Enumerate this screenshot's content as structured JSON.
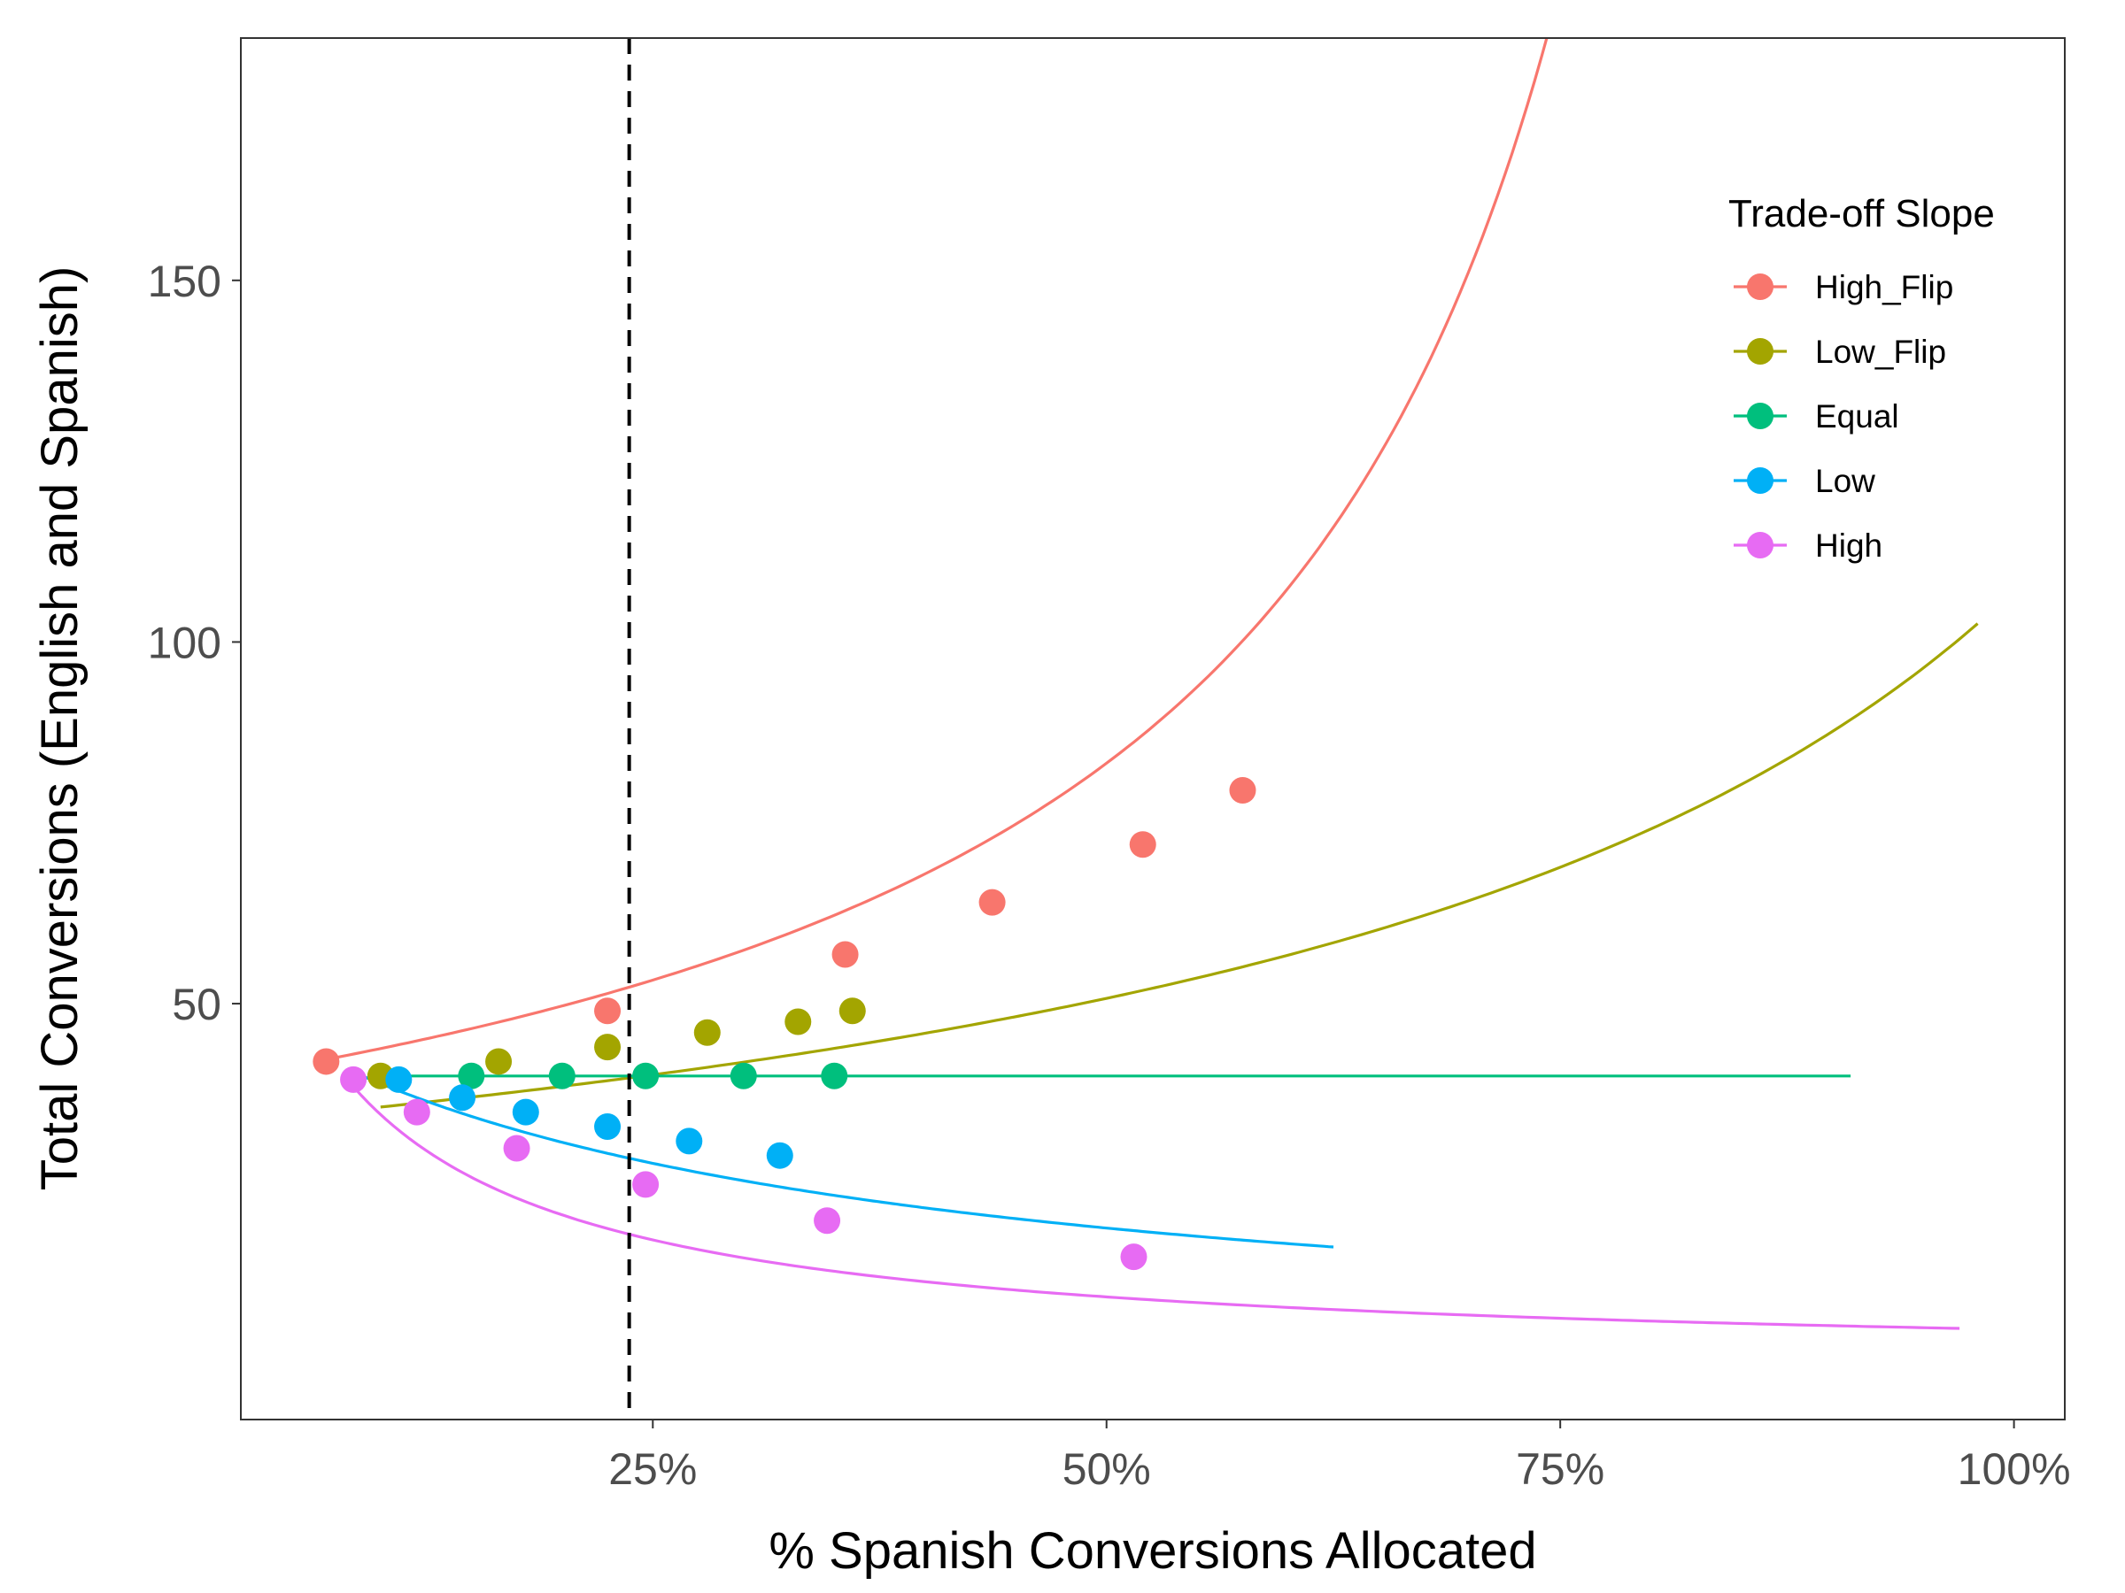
{
  "chart_data": {
    "type": "line",
    "xlabel": "% Spanish Conversions Allocated",
    "ylabel": "Total Conversions (English and Spanish)",
    "x_tick_values": [
      25,
      50,
      75,
      100
    ],
    "x_tick_labels": [
      "25%",
      "50%",
      "75%",
      "100%"
    ],
    "y_tick_values": [
      50,
      100,
      150
    ],
    "y_tick_labels": [
      "50",
      "100",
      "150"
    ],
    "xlim": [
      2.3,
      102.8
    ],
    "ylim": [
      -7.5,
      183.5
    ],
    "grid": false,
    "reference_line": {
      "x": 23.7,
      "style": "dashed",
      "color": "#000000"
    },
    "legend": {
      "title": "Trade-off Slope",
      "placement": "right-inside-top"
    },
    "series": [
      {
        "name": "High_Flip",
        "color": "#F8766D",
        "curve": {
          "form": "a/(b - x)",
          "a": 3696,
          "b": 94.4,
          "x_start": 7.0,
          "x_end": 88.7
        },
        "points": [
          {
            "x": 7.0,
            "y": 42.0
          },
          {
            "x": 22.5,
            "y": 49.0
          },
          {
            "x": 35.6,
            "y": 56.8
          },
          {
            "x": 43.7,
            "y": 64.0
          },
          {
            "x": 52.0,
            "y": 72.0
          },
          {
            "x": 57.5,
            "y": 79.5
          }
        ]
      },
      {
        "name": "Low_Flip",
        "color": "#A3A500",
        "curve": {
          "form": "a/(b - x)",
          "a": 4820,
          "b": 145,
          "x_start": 10.0,
          "x_end": 98.0
        },
        "points": [
          {
            "x": 10.0,
            "y": 40.0
          },
          {
            "x": 16.5,
            "y": 42.0
          },
          {
            "x": 22.5,
            "y": 44.0
          },
          {
            "x": 28.0,
            "y": 46.0
          },
          {
            "x": 33.0,
            "y": 47.5
          },
          {
            "x": 36.0,
            "y": 49.0
          }
        ]
      },
      {
        "name": "Equal",
        "color": "#00BF7D",
        "curve": {
          "form": "a/(b - x)",
          "a": 40,
          "b": 1,
          "x_start": 10.0,
          "x_end": 91.0,
          "constant": 40
        },
        "points": [
          {
            "x": 15.0,
            "y": 40.0
          },
          {
            "x": 20.0,
            "y": 40.0
          },
          {
            "x": 24.6,
            "y": 40.0
          },
          {
            "x": 30.0,
            "y": 40.0
          },
          {
            "x": 35.0,
            "y": 40.0
          }
        ]
      },
      {
        "name": "Low",
        "color": "#00B0F6",
        "curve": {
          "form": "a/(b + x)",
          "a": 1480,
          "b": 28,
          "x_start": 8.5,
          "x_end": 62.5
        },
        "points": [
          {
            "x": 11.0,
            "y": 39.5
          },
          {
            "x": 14.5,
            "y": 37.0
          },
          {
            "x": 18.0,
            "y": 35.0
          },
          {
            "x": 22.5,
            "y": 33.0
          },
          {
            "x": 27.0,
            "y": 31.0
          },
          {
            "x": 32.0,
            "y": 29.0
          }
        ]
      },
      {
        "name": "High",
        "color": "#E76BF3",
        "curve": {
          "form": "a/(b + x)",
          "a": 520,
          "b": 5,
          "x_start": 8.5,
          "x_end": 97.0
        },
        "points": [
          {
            "x": 8.5,
            "y": 39.5
          },
          {
            "x": 12.0,
            "y": 35.0
          },
          {
            "x": 17.5,
            "y": 30.0
          },
          {
            "x": 24.6,
            "y": 25.0
          },
          {
            "x": 34.6,
            "y": 20.0
          },
          {
            "x": 51.5,
            "y": 15.0
          }
        ]
      }
    ]
  }
}
